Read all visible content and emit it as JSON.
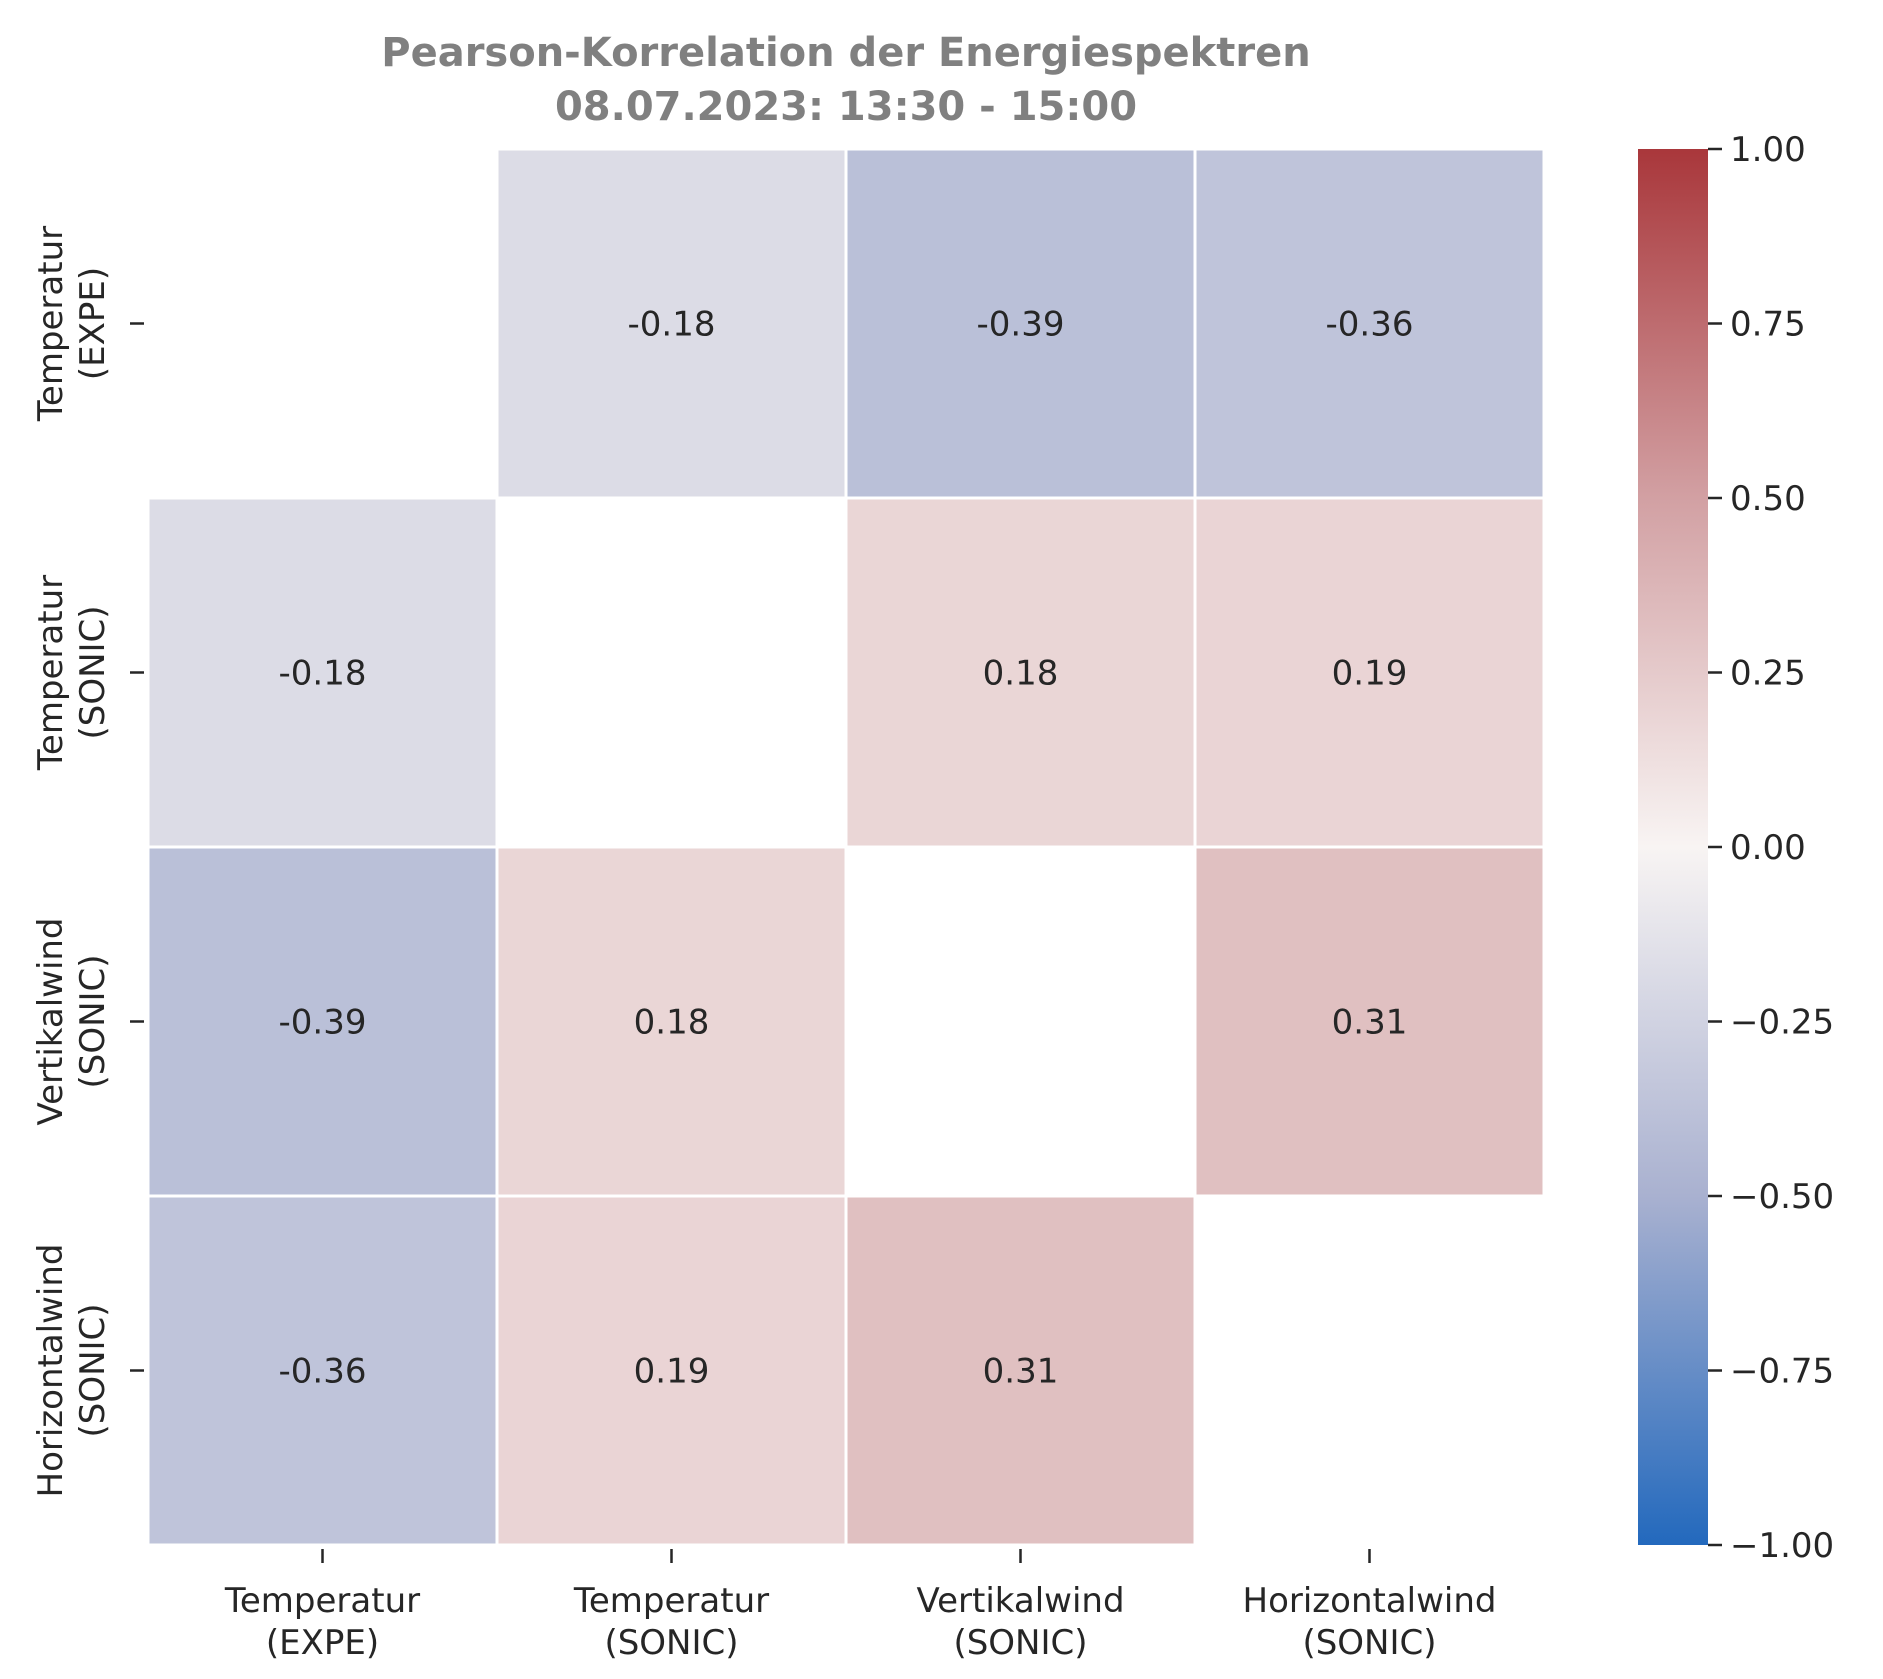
{
  "chart_data": {
    "type": "heatmap",
    "title": "Pearson-Korrelation der Energiespektren",
    "subtitle": "08.07.2023:  13:30 -  15:00",
    "x_categories": [
      [
        "Temperatur",
        "(EXPE)"
      ],
      [
        "Temperatur",
        "(SONIC)"
      ],
      [
        "Vertikalwind",
        "(SONIC)"
      ],
      [
        "Horizontalwind",
        "(SONIC)"
      ]
    ],
    "y_categories": [
      [
        "Temperatur",
        "(EXPE)"
      ],
      [
        "Temperatur",
        "(SONIC)"
      ],
      [
        "Vertikalwind",
        "(SONIC)"
      ],
      [
        "Horizontalwind",
        "(SONIC)"
      ]
    ],
    "values": [
      [
        null,
        -0.18,
        -0.39,
        -0.36
      ],
      [
        -0.18,
        null,
        0.18,
        0.19
      ],
      [
        -0.39,
        0.18,
        null,
        0.31
      ],
      [
        -0.36,
        0.19,
        0.31,
        null
      ]
    ],
    "value_labels": [
      [
        null,
        "-0.18",
        "-0.39",
        "-0.36"
      ],
      [
        "-0.18",
        null,
        "0.18",
        "0.19"
      ],
      [
        "-0.39",
        "0.18",
        null,
        "0.31"
      ],
      [
        "-0.36",
        "0.19",
        "0.31",
        null
      ]
    ],
    "colorbar": {
      "range": [
        -1,
        1
      ],
      "ticks": [
        1.0,
        0.75,
        0.5,
        0.25,
        0.0,
        -0.25,
        -0.5,
        -0.75,
        -1.0
      ],
      "tick_labels": [
        "1.00",
        "0.75",
        "0.50",
        "0.25",
        "0.00",
        "−0.25",
        "−0.50",
        "−0.75",
        "−1.00"
      ],
      "colormap": "vlag",
      "color_stops": [
        "#2369bd",
        "#a9b1d0",
        "#f8f4f3",
        "#d2a0a3",
        "#a9373b"
      ]
    },
    "grid": false,
    "legend": "colorbar-right"
  }
}
